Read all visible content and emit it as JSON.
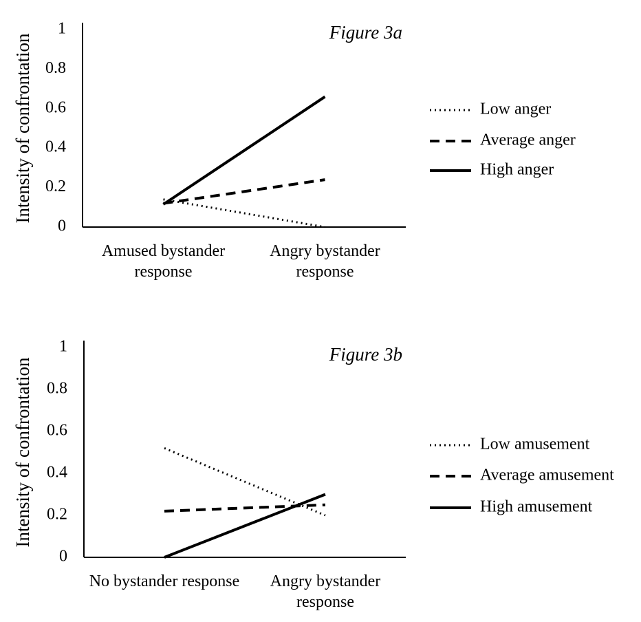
{
  "chart_data": [
    {
      "type": "line",
      "title": "Figure 3a",
      "y_label": "Intensity of confrontation",
      "categories": [
        "Amused bystander response",
        "Angry bystander response"
      ],
      "series": [
        {
          "name": "Low anger",
          "color": "#000000",
          "line_style": "dotted",
          "values": [
            0.14,
            0
          ]
        },
        {
          "name": "Average anger",
          "color": "#000000",
          "line_style": "dashed",
          "values": [
            0.12,
            0.24
          ]
        },
        {
          "name": "High anger",
          "color": "#000000",
          "line_style": "solid",
          "values": [
            0.115,
            0.66
          ]
        }
      ],
      "ylim": [
        0,
        1
      ],
      "yticks": [
        0,
        0.2,
        0.4,
        0.6,
        0.8,
        1
      ],
      "grid": false,
      "legend": "right"
    },
    {
      "type": "line",
      "title": "Figure 3b",
      "y_label": "Intensity of confrontation",
      "categories": [
        "No bystander response",
        "Angry bystander response"
      ],
      "series": [
        {
          "name": "Low amusement",
          "color": "#000000",
          "line_style": "dotted",
          "values": [
            0.52,
            0.2
          ]
        },
        {
          "name": "Average amusement",
          "color": "#000000",
          "line_style": "dashed",
          "values": [
            0.22,
            0.25
          ]
        },
        {
          "name": "High amusement",
          "color": "#000000",
          "line_style": "solid",
          "values": [
            0,
            0.3
          ]
        }
      ],
      "ylim": [
        0,
        1
      ],
      "yticks": [
        0,
        0.2,
        0.4,
        0.6,
        0.8,
        1
      ],
      "grid": false,
      "legend": "right"
    }
  ]
}
